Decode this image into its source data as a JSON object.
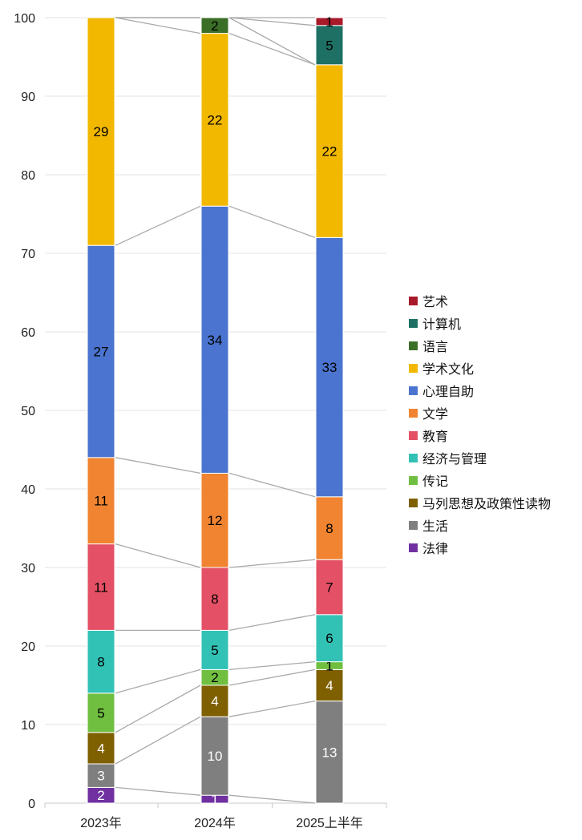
{
  "chart_data": {
    "type": "bar",
    "stacked": true,
    "categories": [
      "2023年",
      "2024年",
      "2025上半年"
    ],
    "ylim": [
      0,
      100
    ],
    "yticks": [
      0,
      10,
      20,
      30,
      40,
      50,
      60,
      70,
      80,
      90,
      100
    ],
    "grid": true,
    "legend_position": "right",
    "series": [
      {
        "name": "法律",
        "color": "#7030a0",
        "label_color": "#ffffff",
        "values": [
          2,
          1,
          0
        ]
      },
      {
        "name": "生活",
        "color": "#7f7f7f",
        "label_color": "#ffffff",
        "values": [
          3,
          10,
          13
        ]
      },
      {
        "name": "马列思想及政策性读物",
        "color": "#7f6000",
        "label_color": "#ffffff",
        "values": [
          4,
          4,
          4
        ]
      },
      {
        "name": "传记",
        "color": "#70bf41",
        "label_color": "#000000",
        "values": [
          5,
          2,
          1
        ]
      },
      {
        "name": "经济与管理",
        "color": "#32c1b5",
        "label_color": "#000000",
        "values": [
          8,
          5,
          6
        ]
      },
      {
        "name": "教育",
        "color": "#e45065",
        "label_color": "#000000",
        "values": [
          11,
          8,
          7
        ]
      },
      {
        "name": "文学",
        "color": "#f08431",
        "label_color": "#000000",
        "values": [
          11,
          12,
          8
        ]
      },
      {
        "name": "心理自助",
        "color": "#4a74cf",
        "label_color": "#000000",
        "values": [
          27,
          34,
          33
        ]
      },
      {
        "name": "学术文化",
        "color": "#f2b800",
        "label_color": "#000000",
        "values": [
          29,
          22,
          22
        ]
      },
      {
        "name": "语言",
        "color": "#3b6e26",
        "label_color": "#000000",
        "values": [
          0,
          2,
          0
        ]
      },
      {
        "name": "计算机",
        "color": "#1e7064",
        "label_color": "#000000",
        "values": [
          0,
          0,
          5
        ]
      },
      {
        "name": "艺术",
        "color": "#a8192a",
        "label_color": "#000000",
        "values": [
          0,
          0,
          1
        ]
      }
    ]
  }
}
